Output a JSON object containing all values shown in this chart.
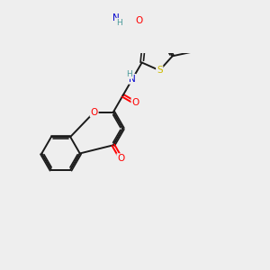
{
  "background_color": "#eeeeee",
  "bond_color": "#1a1a1a",
  "atom_colors": {
    "O": "#ff0000",
    "N": "#0000cc",
    "S": "#ccbb00",
    "H": "#4a9a9a",
    "C": "#1a1a1a"
  },
  "figsize": [
    3.0,
    3.0
  ],
  "dpi": 100
}
